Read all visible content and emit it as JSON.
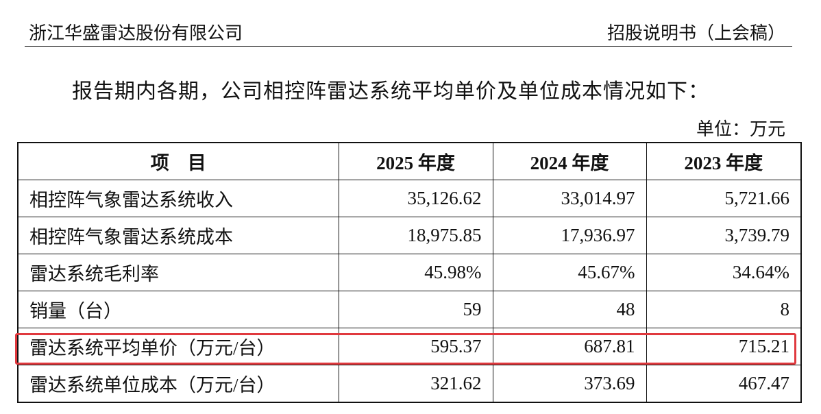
{
  "header": {
    "company": "浙江华盛雷达股份有限公司",
    "doc_title": "招股说明书（上会稿）"
  },
  "intro": "报告期内各期，公司相控阵雷达系统平均单价及单位成本情况如下：",
  "unit": "单位：万元",
  "table": {
    "columns": [
      "项　目",
      "2025 年度",
      "2024 年度",
      "2023 年度"
    ],
    "rows": [
      [
        "相控阵气象雷达系统收入",
        "35,126.62",
        "33,014.97",
        "5,721.66"
      ],
      [
        "相控阵气象雷达系统成本",
        "18,975.85",
        "17,936.97",
        "3,739.79"
      ],
      [
        "雷达系统毛利率",
        "45.98%",
        "45.67%",
        "34.64%"
      ],
      [
        "销量（台）",
        "59",
        "48",
        "8"
      ],
      [
        "雷达系统平均单价（万元/台）",
        "595.37",
        "687.81",
        "715.21"
      ],
      [
        "雷达系统单位成本（万元/台）",
        "321.62",
        "373.69",
        "467.47"
      ]
    ]
  }
}
